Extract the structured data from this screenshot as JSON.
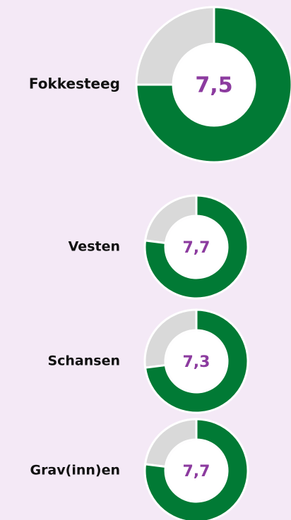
{
  "chart_data": [
    {
      "type": "donut",
      "title": "Fokkesteeg",
      "values": [
        7.5
      ],
      "value_labels": [
        "7,5"
      ],
      "ylim": [
        0,
        10
      ],
      "color": "#017a35",
      "track_color": "#d9d9d9",
      "label_color": "#8c3b9f"
    },
    {
      "type": "donut",
      "title": "Vesten",
      "values": [
        7.7
      ],
      "value_labels": [
        "7,7"
      ],
      "ylim": [
        0,
        10
      ],
      "color": "#017a35",
      "track_color": "#d9d9d9",
      "label_color": "#8c3b9f"
    },
    {
      "type": "donut",
      "title": "Schansen",
      "values": [
        7.3
      ],
      "value_labels": [
        "7,3"
      ],
      "ylim": [
        0,
        10
      ],
      "color": "#017a35",
      "track_color": "#d9d9d9",
      "label_color": "#8c3b9f"
    },
    {
      "type": "donut",
      "title": "Grav(inn)en",
      "values": [
        7.7
      ],
      "value_labels": [
        "7,7"
      ],
      "ylim": [
        0,
        10
      ],
      "color": "#017a35",
      "track_color": "#d9d9d9",
      "label_color": "#8c3b9f"
    }
  ]
}
